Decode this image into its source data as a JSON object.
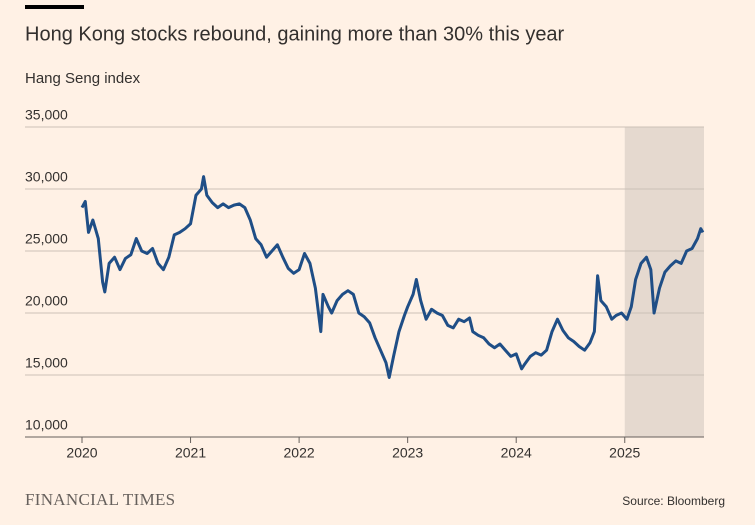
{
  "chart_data": {
    "type": "line",
    "title": "Hong Kong stocks rebound, gaining more than 30% this year",
    "subtitle": "Hang Seng index",
    "source": "Source: Bloomberg",
    "brand": "FINANCIAL TIMES",
    "highlight": [
      2025,
      2025.73
    ],
    "xlim": [
      2020,
      2025.73
    ],
    "xticks": [
      2020,
      2021,
      2022,
      2023,
      2024,
      2025
    ],
    "ylim": [
      10000,
      35000
    ],
    "yticks": [
      {
        "value": 10000,
        "label": "10,000"
      },
      {
        "value": 15000,
        "label": "15,000"
      },
      {
        "value": 20000,
        "label": "20,000"
      },
      {
        "value": 25000,
        "label": "25,000"
      },
      {
        "value": 30000,
        "label": "30,000"
      },
      {
        "value": 35000,
        "label": "35,000"
      }
    ],
    "grid": true,
    "x": [
      2020.0,
      2020.03,
      2020.06,
      2020.1,
      2020.15,
      2020.19,
      2020.21,
      2020.25,
      2020.3,
      2020.35,
      2020.4,
      2020.45,
      2020.5,
      2020.55,
      2020.6,
      2020.65,
      2020.7,
      2020.75,
      2020.8,
      2020.85,
      2020.9,
      2020.95,
      2021.0,
      2021.05,
      2021.1,
      2021.12,
      2021.15,
      2021.2,
      2021.25,
      2021.3,
      2021.35,
      2021.4,
      2021.45,
      2021.5,
      2021.55,
      2021.6,
      2021.65,
      2021.7,
      2021.75,
      2021.8,
      2021.85,
      2021.9,
      2021.95,
      2022.0,
      2022.05,
      2022.1,
      2022.15,
      2022.2,
      2022.22,
      2022.27,
      2022.3,
      2022.35,
      2022.4,
      2022.45,
      2022.5,
      2022.55,
      2022.6,
      2022.65,
      2022.7,
      2022.75,
      2022.8,
      2022.83,
      2022.87,
      2022.92,
      2022.97,
      2023.0,
      2023.05,
      2023.08,
      2023.12,
      2023.17,
      2023.22,
      2023.27,
      2023.32,
      2023.37,
      2023.42,
      2023.47,
      2023.52,
      2023.57,
      2023.6,
      2023.65,
      2023.7,
      2023.75,
      2023.8,
      2023.85,
      2023.9,
      2023.95,
      2024.0,
      2024.05,
      2024.08,
      2024.13,
      2024.18,
      2024.23,
      2024.28,
      2024.33,
      2024.38,
      2024.43,
      2024.48,
      2024.53,
      2024.58,
      2024.63,
      2024.68,
      2024.72,
      2024.75,
      2024.78,
      2024.83,
      2024.88,
      2024.92,
      2024.97,
      2025.02,
      2025.06,
      2025.1,
      2025.15,
      2025.2,
      2025.24,
      2025.27,
      2025.32,
      2025.37,
      2025.42,
      2025.47,
      2025.52,
      2025.57,
      2025.62,
      2025.67,
      2025.7,
      2025.72
    ],
    "series": [
      {
        "name": "Hang Seng index",
        "color": "#1f4e86",
        "values": [
          28500,
          29000,
          26500,
          27500,
          26000,
          22500,
          21700,
          24000,
          24500,
          23500,
          24400,
          24700,
          26000,
          25000,
          24800,
          25200,
          24000,
          23500,
          24500,
          26300,
          26500,
          26800,
          27200,
          29500,
          30000,
          31000,
          29500,
          28900,
          28500,
          28800,
          28500,
          28700,
          28800,
          28500,
          27500,
          26000,
          25500,
          24500,
          25000,
          25500,
          24500,
          23600,
          23200,
          23500,
          24800,
          24000,
          22000,
          18500,
          21500,
          20500,
          20000,
          21000,
          21500,
          21800,
          21500,
          20000,
          19700,
          19200,
          18000,
          17000,
          16000,
          14800,
          16500,
          18500,
          19800,
          20500,
          21500,
          22700,
          21000,
          19500,
          20300,
          20000,
          19800,
          19000,
          18800,
          19500,
          19300,
          19600,
          18500,
          18200,
          18000,
          17500,
          17200,
          17500,
          17000,
          16500,
          16700,
          15500,
          15900,
          16500,
          16800,
          16600,
          17000,
          18500,
          19500,
          18600,
          18000,
          17700,
          17300,
          17000,
          17600,
          18500,
          23000,
          21000,
          20500,
          19500,
          19800,
          20000,
          19500,
          20500,
          22700,
          24000,
          24500,
          23500,
          20000,
          22000,
          23300,
          23800,
          24200,
          24000,
          25000,
          25200,
          26000,
          26800,
          26500
        ]
      }
    ]
  }
}
